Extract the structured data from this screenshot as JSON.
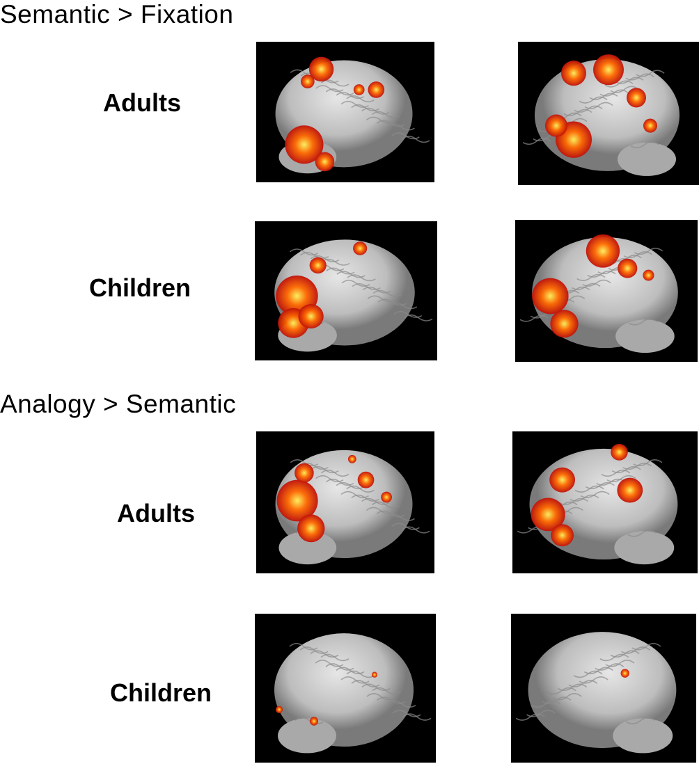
{
  "sections": [
    {
      "title": "Semantic > Fixation",
      "groups": [
        {
          "label": "Adults"
        },
        {
          "label": "Children"
        }
      ]
    },
    {
      "title": "Analogy > Semantic",
      "groups": [
        {
          "label": "Adults"
        },
        {
          "label": "Children"
        }
      ]
    }
  ],
  "colors": {
    "background": "#000000",
    "brain": "#bdbdbd",
    "activation_low": "#c0120a",
    "activation_mid": "#ff6a00",
    "activation_high": "#fff15a"
  }
}
